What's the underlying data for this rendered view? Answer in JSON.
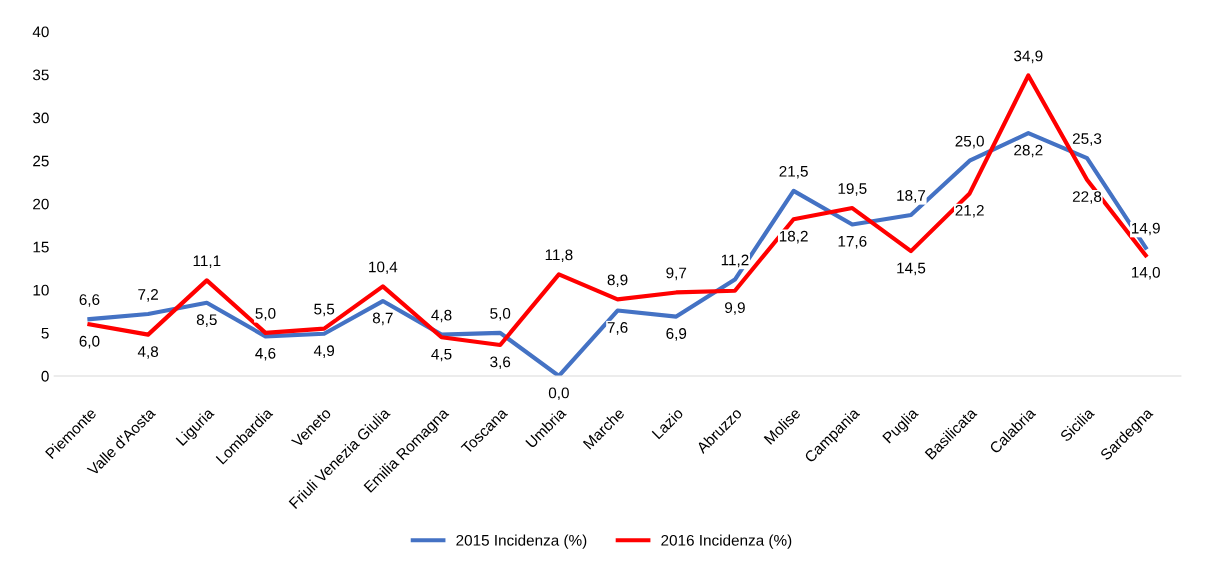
{
  "chart_data": {
    "type": "line",
    "categories": [
      "Piemonte",
      "Valle d'Aosta",
      "Liguria",
      "Lombardia",
      "Veneto",
      "Friuli Venezia Giulia",
      "Emilia Romagna",
      "Toscana",
      "Umbria",
      "Marche",
      "Lazio",
      "Abruzzo",
      "Molise",
      "Campania",
      "Puglia",
      "Basilicata",
      "Calabria",
      "Sicilia",
      "Sardegna"
    ],
    "series": [
      {
        "name": "2015 Incidenza (%)",
        "color": "#4472c4",
        "values": [
          6.6,
          7.2,
          8.5,
          4.6,
          4.9,
          8.7,
          4.8,
          5.0,
          0.0,
          7.6,
          6.9,
          11.2,
          21.5,
          17.6,
          18.7,
          25.0,
          28.2,
          25.3,
          14.9
        ],
        "value_labels": [
          "6,6",
          "7,2",
          "8,5",
          "4,6",
          "4,9",
          "8,7",
          "4,8",
          "5,0",
          "0,0",
          "7,6",
          "6,9",
          "11,2",
          "21,5",
          "17,6",
          "18,7",
          "25,0",
          "28,2",
          "25,3",
          "14,9"
        ]
      },
      {
        "name": "2016 Incidenza (%)",
        "color": "#ff0000",
        "values": [
          6.0,
          4.8,
          11.1,
          5.0,
          5.5,
          10.4,
          4.5,
          3.6,
          11.8,
          8.9,
          9.7,
          9.9,
          18.2,
          19.5,
          14.5,
          21.2,
          34.9,
          22.8,
          14.0
        ],
        "value_labels": [
          "6,0",
          "4,8",
          "11,1",
          "5,0",
          "5,5",
          "10,4",
          "4,5",
          "3,6",
          "11,8",
          "8,9",
          "9,7",
          "9,9",
          "18,2",
          "19,5",
          "14,5",
          "21,2",
          "34,9",
          "22,8",
          "14,0"
        ]
      }
    ],
    "ylim": [
      0,
      40
    ],
    "yticks": [
      0,
      5,
      10,
      15,
      20,
      25,
      30,
      35,
      40
    ],
    "grid": false,
    "legend": "bottom",
    "marker": "none",
    "line_style": "solid"
  }
}
